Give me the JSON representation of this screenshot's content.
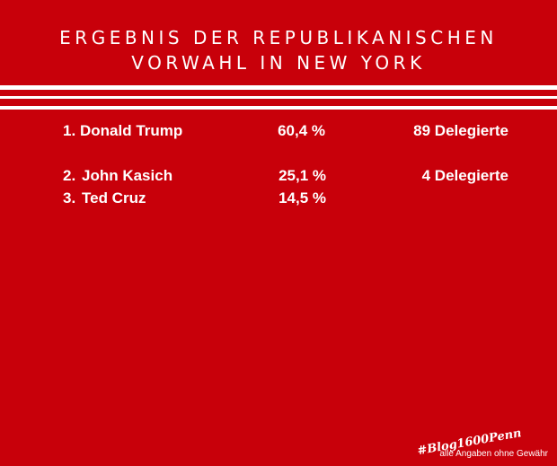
{
  "title": {
    "line1": "ERGEBNIS DER REPUBLIKANISCHEN",
    "line2": "VORWAHL IN NEW YORK"
  },
  "results": [
    {
      "rank": "1.",
      "name": "Donald Trump",
      "percent": "60,4 %",
      "delegates": "89 Delegierte"
    },
    {
      "rank": "2.",
      "name": "John Kasich",
      "percent": "25,1 %",
      "delegates": "4 Delegierte"
    },
    {
      "rank": "3.",
      "name": "Ted Cruz",
      "percent": "14,5 %",
      "delegates": ""
    }
  ],
  "hashtag": "#Blog1600Penn",
  "footnote": "alle Angaben ohne Gewähr",
  "colors": {
    "background": "#c8000a",
    "text": "#ffffff"
  }
}
